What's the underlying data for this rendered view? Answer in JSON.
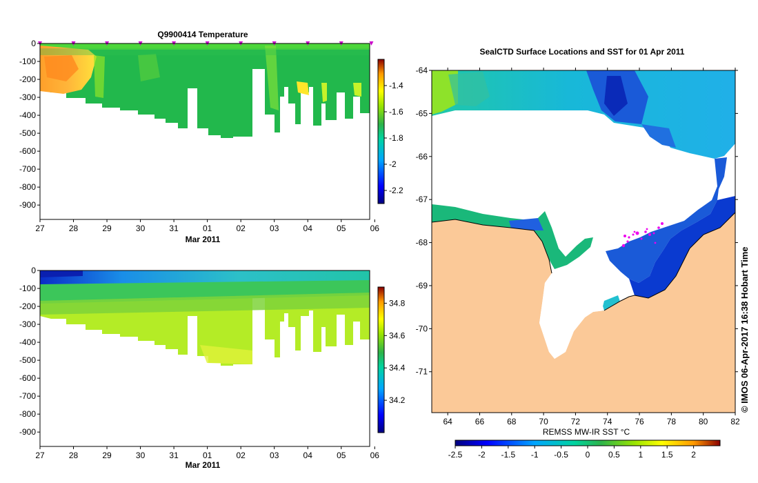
{
  "chart_data": [
    {
      "type": "heatmap",
      "title": "Q9900414  Temperature",
      "xlabel": "Mar 2011",
      "x_ticks": [
        "27",
        "28",
        "29",
        "30",
        "31",
        "01",
        "02",
        "03",
        "04",
        "05",
        "06"
      ],
      "ylim": [
        -980,
        0
      ],
      "y_ticks": [
        "0",
        "-100",
        "-200",
        "-300",
        "-400",
        "-500",
        "-600",
        "-700",
        "-800",
        "-900"
      ],
      "colorbar_range": [
        -2.3,
        -1.2
      ],
      "colorbar_ticks": [
        "-1.4",
        "-1.6",
        "-1.8",
        "-2",
        "-2.2"
      ],
      "profile_marker_days": [
        0,
        1,
        2,
        3,
        4,
        5,
        6,
        7,
        8,
        9,
        9.9
      ],
      "marker_color": "#cc00cc"
    },
    {
      "type": "heatmap",
      "title": "",
      "xlabel": "Mar 2011",
      "x_ticks": [
        "27",
        "28",
        "29",
        "30",
        "31",
        "01",
        "02",
        "03",
        "04",
        "05",
        "06"
      ],
      "ylim": [
        -980,
        0
      ],
      "y_ticks": [
        "0",
        "-100",
        "-200",
        "-300",
        "-400",
        "-500",
        "-600",
        "-700",
        "-800",
        "-900"
      ],
      "colorbar_range": [
        34.0,
        34.9
      ],
      "colorbar_ticks": [
        "34.8",
        "34.6",
        "34.4",
        "34.2"
      ]
    },
    {
      "type": "heatmap",
      "title": "SealCTD Surface Locations and SST for 01 Apr 2011",
      "xlabel": "REMSS MW-IR SST °C",
      "xlim": [
        63,
        82
      ],
      "ylim": [
        -72,
        -64
      ],
      "x_ticks": [
        "64",
        "66",
        "68",
        "70",
        "72",
        "74",
        "76",
        "78",
        "80",
        "82"
      ],
      "y_ticks": [
        "-64",
        "-65",
        "-66",
        "-67",
        "-68",
        "-69",
        "-70",
        "-71"
      ],
      "colorbar_range": [
        -2.5,
        2.5
      ],
      "colorbar_ticks": [
        "-2.5",
        "-2",
        "-1.5",
        "-1",
        "-0.5",
        "0",
        "0.5",
        "1",
        "1.5",
        "2"
      ],
      "land_color": "#fbc998"
    }
  ],
  "credit": "© IMOS 06-Apr-2017 16:38 Hobart Time"
}
